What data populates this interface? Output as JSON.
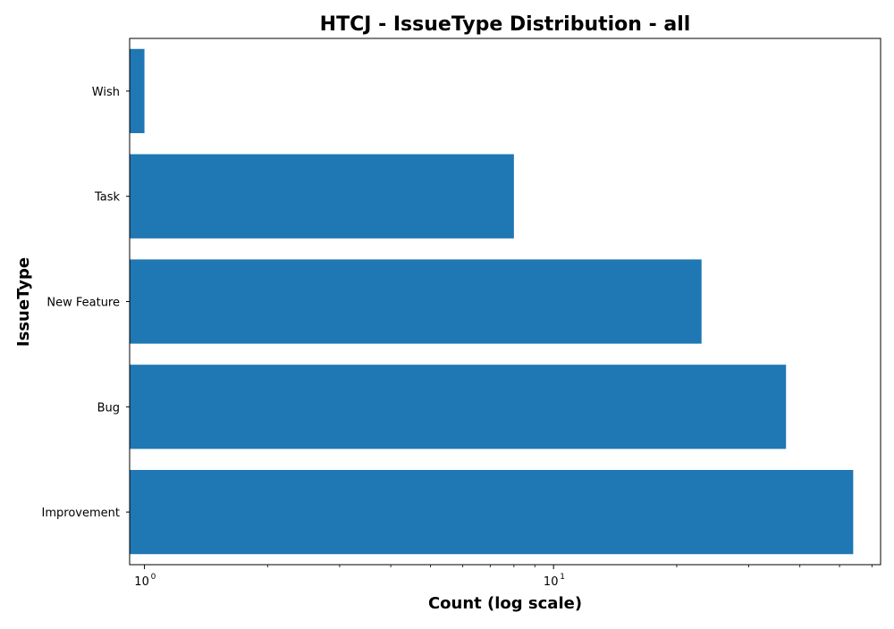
{
  "chart_data": {
    "type": "bar",
    "orientation": "horizontal",
    "title": "HTCJ - IssueType Distribution - all",
    "xlabel": "Count (log scale)",
    "ylabel": "IssueType",
    "xscale": "log",
    "xlim": [
      0.92,
      63
    ],
    "categories": [
      "Improvement",
      "Bug",
      "New Feature",
      "Task",
      "Wish"
    ],
    "values": [
      54,
      37,
      23,
      8,
      1
    ],
    "major_ticks": [
      {
        "value": 1,
        "base": "10",
        "exp": "0"
      },
      {
        "value": 10,
        "base": "10",
        "exp": "1"
      }
    ],
    "bar_color": "#1f77b4",
    "grid": false,
    "legend": "none"
  }
}
